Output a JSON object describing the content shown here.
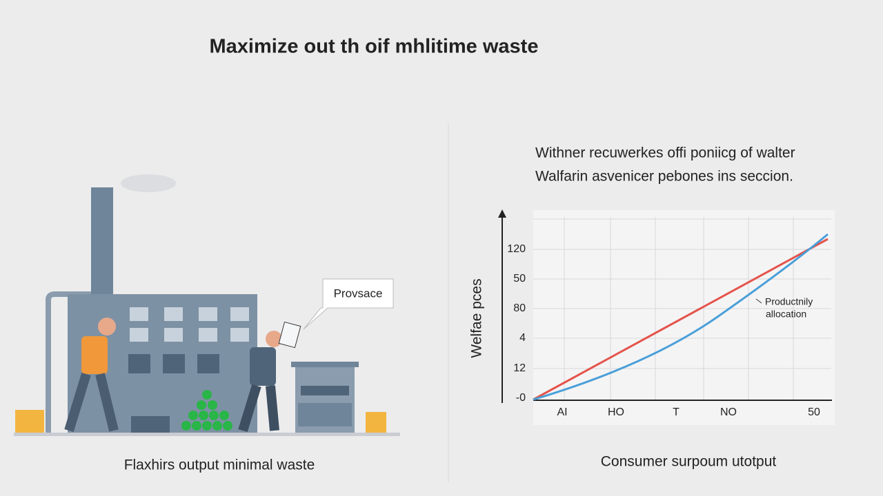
{
  "title": "Maximize out th oif mhlitime waste",
  "left_panel": {
    "bubble": "Provsace",
    "caption": "Flaxhirs output minimal waste"
  },
  "right_panel": {
    "subtitle_lines": [
      "Withner recuwerkes offi poniicg of walter",
      "Walfarin asvenicer pebones ins seccion."
    ],
    "chart": {
      "y_axis_label": "Welfae pces",
      "y_labels": [
        "120",
        "50",
        "80",
        "4",
        "12",
        "-0"
      ],
      "x_labels": [
        "AI",
        "HO",
        "T",
        "NO",
        "50"
      ],
      "annotation_lines": [
        "Productnily",
        "allocation"
      ]
    },
    "caption": "Consumer surpoum utotput"
  }
}
